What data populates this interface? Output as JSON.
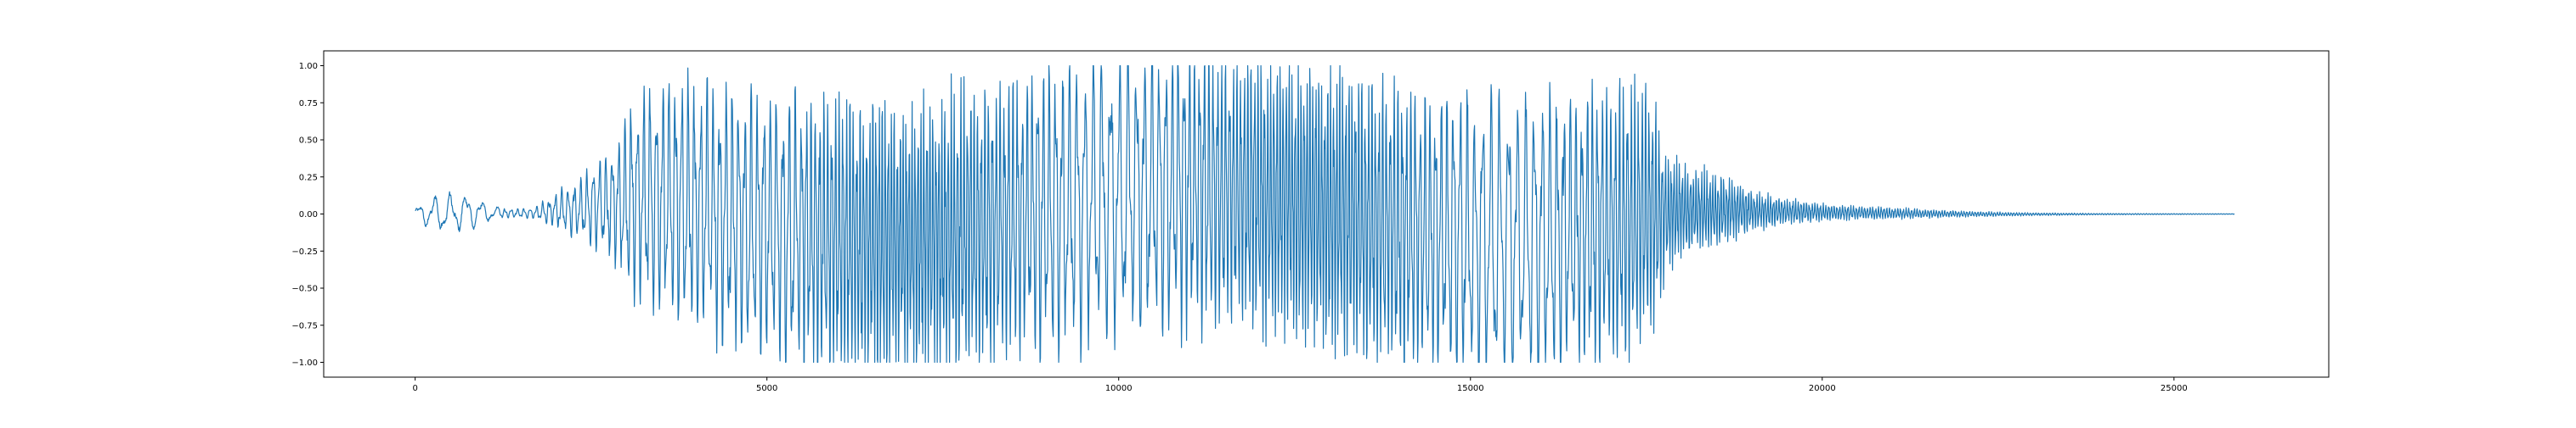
{
  "chart_data": {
    "type": "line",
    "title": "",
    "xlabel": "",
    "ylabel": "",
    "xlim": [
      -1300,
      27200
    ],
    "ylim": [
      -1.1,
      1.1
    ],
    "grid": false,
    "legend": "none",
    "line_color": "#1f77b4",
    "x_ticks": [
      0,
      5000,
      10000,
      15000,
      20000,
      25000
    ],
    "x_tick_labels": [
      "0",
      "5000",
      "10000",
      "15000",
      "20000",
      "25000"
    ],
    "y_ticks": [
      -1.0,
      -0.75,
      -0.5,
      -0.25,
      0.0,
      0.25,
      0.5,
      0.75,
      1.0
    ],
    "y_tick_labels": [
      "−1.00",
      "−0.75",
      "−0.50",
      "−0.25",
      "0.00",
      "0.25",
      "0.50",
      "0.75",
      "1.00"
    ],
    "series": [
      {
        "x_range": [
          0,
          25860
        ],
        "envelope": [
          [
            0,
            0.05
          ],
          [
            200,
            0.1
          ],
          [
            350,
            0.14
          ],
          [
            500,
            0.13
          ],
          [
            700,
            0.13
          ],
          [
            900,
            0.1
          ],
          [
            1100,
            0.05
          ],
          [
            1300,
            0.03
          ],
          [
            1500,
            0.03
          ],
          [
            1700,
            0.04
          ],
          [
            2000,
            0.12
          ],
          [
            2300,
            0.2
          ],
          [
            2600,
            0.32
          ],
          [
            2900,
            0.45
          ],
          [
            3100,
            0.7
          ],
          [
            3400,
            0.8
          ],
          [
            3700,
            0.85
          ],
          [
            4000,
            0.88
          ],
          [
            4300,
            0.9
          ],
          [
            4600,
            0.92
          ],
          [
            5000,
            0.93
          ],
          [
            5300,
            0.95
          ],
          [
            5600,
            1.0
          ],
          [
            7000,
            1.0
          ],
          [
            10000,
            1.0
          ],
          [
            13000,
            1.0
          ],
          [
            16000,
            1.0
          ],
          [
            17200,
            1.0
          ],
          [
            17600,
            0.85
          ],
          [
            17800,
            0.4
          ],
          [
            18200,
            0.3
          ],
          [
            18600,
            0.25
          ],
          [
            19000,
            0.14
          ],
          [
            19500,
            0.09
          ],
          [
            20000,
            0.06
          ],
          [
            20500,
            0.05
          ],
          [
            21000,
            0.04
          ],
          [
            22000,
            0.02
          ],
          [
            23000,
            0.01
          ],
          [
            24000,
            0.005
          ],
          [
            25860,
            0.002
          ]
        ]
      }
    ]
  }
}
